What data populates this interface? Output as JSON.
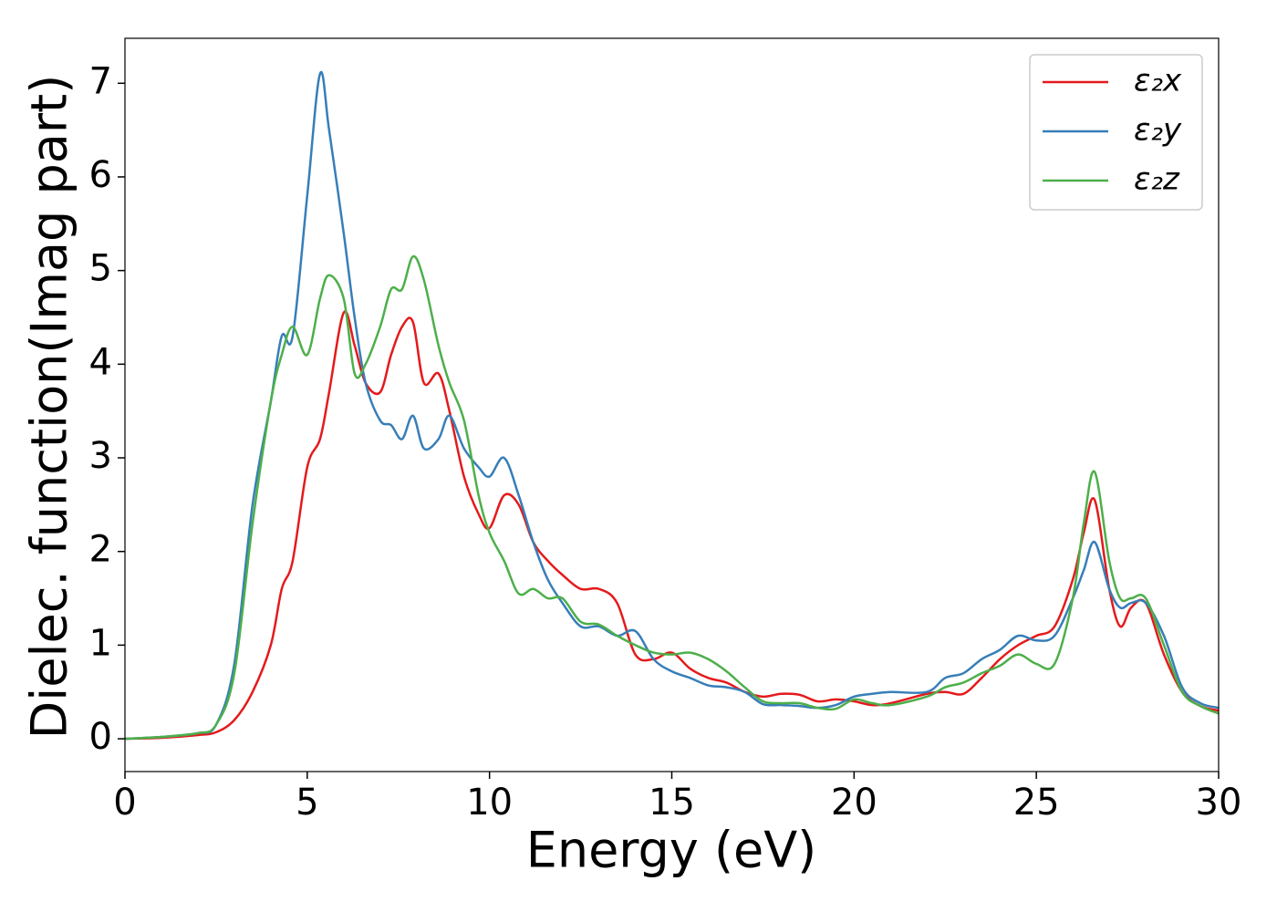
{
  "chart_data": {
    "type": "line",
    "xlabel": "Energy (eV)",
    "ylabel": "Dielec. function(Imag part)",
    "x": [
      0,
      1,
      2,
      2.5,
      3,
      3.5,
      4,
      4.3,
      4.6,
      5,
      5.35,
      5.6,
      6,
      6.3,
      6.6,
      7,
      7.3,
      7.6,
      7.9,
      8.2,
      8.6,
      8.9,
      9.3,
      9.7,
      10,
      10.4,
      10.8,
      11.2,
      11.6,
      12,
      12.5,
      13,
      13.5,
      14,
      14.5,
      15,
      15.5,
      16,
      16.5,
      17,
      17.5,
      18,
      18.5,
      19,
      19.5,
      20,
      20.5,
      21,
      22,
      22.5,
      23,
      23.5,
      24,
      24.5,
      25,
      25.5,
      26,
      26.3,
      26.6,
      27,
      27.3,
      27.6,
      28,
      28.5,
      29,
      29.5,
      30
    ],
    "series": [
      {
        "name": "ε₂x",
        "color": "#e41a1c",
        "values": [
          0,
          0.01,
          0.04,
          0.07,
          0.2,
          0.5,
          1.0,
          1.6,
          1.9,
          2.9,
          3.2,
          3.7,
          4.55,
          4.2,
          3.8,
          3.7,
          4.1,
          4.4,
          4.45,
          3.8,
          3.9,
          3.5,
          2.8,
          2.4,
          2.25,
          2.6,
          2.5,
          2.1,
          1.9,
          1.75,
          1.6,
          1.6,
          1.45,
          0.9,
          0.85,
          0.92,
          0.75,
          0.65,
          0.6,
          0.5,
          0.45,
          0.48,
          0.47,
          0.4,
          0.42,
          0.4,
          0.36,
          0.38,
          0.48,
          0.5,
          0.48,
          0.65,
          0.85,
          1.0,
          1.1,
          1.2,
          1.7,
          2.2,
          2.55,
          1.6,
          1.2,
          1.4,
          1.45,
          0.9,
          0.5,
          0.35,
          0.3
        ]
      },
      {
        "name": "ε₂y",
        "color": "#377eb8",
        "values": [
          0,
          0.02,
          0.06,
          0.15,
          0.8,
          2.5,
          3.6,
          4.3,
          4.3,
          5.8,
          7.1,
          6.5,
          5.4,
          4.5,
          3.8,
          3.4,
          3.35,
          3.2,
          3.45,
          3.1,
          3.2,
          3.45,
          3.1,
          2.9,
          2.8,
          3.0,
          2.6,
          2.1,
          1.7,
          1.45,
          1.2,
          1.2,
          1.1,
          1.15,
          0.85,
          0.72,
          0.65,
          0.57,
          0.55,
          0.5,
          0.37,
          0.36,
          0.35,
          0.33,
          0.36,
          0.45,
          0.48,
          0.5,
          0.5,
          0.65,
          0.7,
          0.85,
          0.95,
          1.1,
          1.05,
          1.1,
          1.5,
          1.8,
          2.1,
          1.6,
          1.4,
          1.45,
          1.45,
          1.1,
          0.55,
          0.38,
          0.33
        ]
      },
      {
        "name": "ε₂z",
        "color": "#4daf4a",
        "values": [
          0,
          0.02,
          0.06,
          0.15,
          0.7,
          2.3,
          3.6,
          4.1,
          4.4,
          4.1,
          4.7,
          4.95,
          4.7,
          3.9,
          4.0,
          4.4,
          4.8,
          4.8,
          5.15,
          4.9,
          4.2,
          3.8,
          3.4,
          2.6,
          2.2,
          1.9,
          1.55,
          1.6,
          1.5,
          1.5,
          1.25,
          1.22,
          1.1,
          1.0,
          0.92,
          0.9,
          0.92,
          0.85,
          0.72,
          0.55,
          0.4,
          0.38,
          0.38,
          0.33,
          0.32,
          0.42,
          0.38,
          0.36,
          0.45,
          0.55,
          0.6,
          0.7,
          0.78,
          0.9,
          0.8,
          0.8,
          1.5,
          2.3,
          2.85,
          1.9,
          1.5,
          1.5,
          1.5,
          1.0,
          0.5,
          0.35,
          0.27
        ]
      }
    ],
    "xlim": [
      0,
      30
    ],
    "xticks": [
      0,
      5,
      10,
      15,
      20,
      25,
      30
    ],
    "ylim": [
      -0.35,
      7.48
    ],
    "yticks": [
      0,
      1,
      2,
      3,
      4,
      5,
      6,
      7
    ],
    "grid": false,
    "legend": "upper right"
  }
}
